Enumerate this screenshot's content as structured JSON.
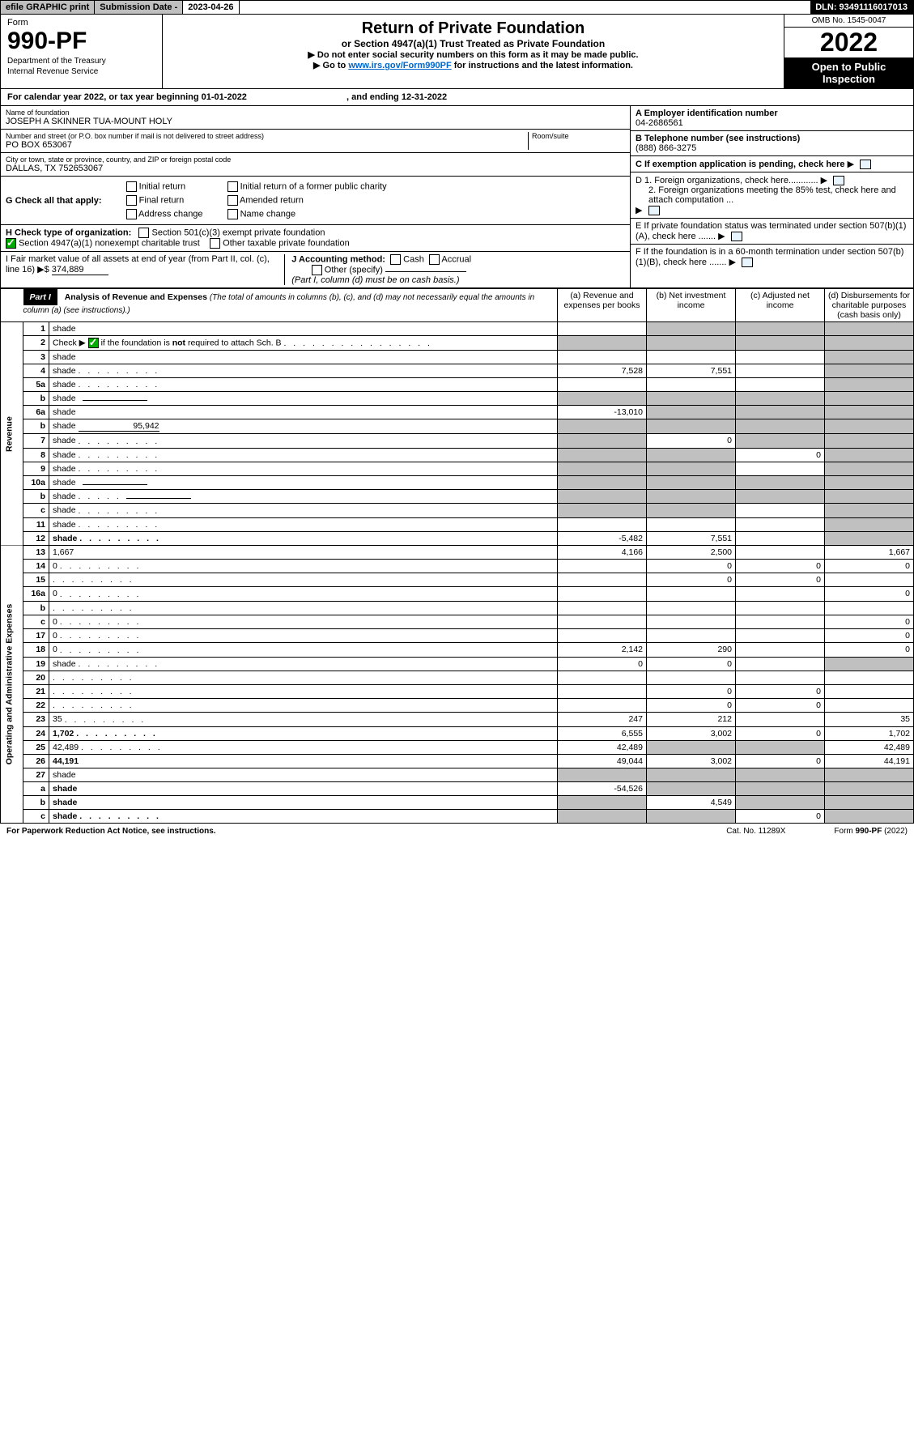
{
  "topbar": {
    "efile": "efile GRAPHIC print",
    "subdate_label": "Submission Date - ",
    "subdate": "2023-04-26",
    "dln": "DLN: 93491116017013"
  },
  "header": {
    "form_word": "Form",
    "form_no": "990-PF",
    "dept": "Department of the Treasury",
    "irs": "Internal Revenue Service",
    "title": "Return of Private Foundation",
    "subtitle": "or Section 4947(a)(1) Trust Treated as Private Foundation",
    "instr1": "▶ Do not enter social security numbers on this form as it may be made public.",
    "instr2a": "▶ Go to ",
    "instr2_link": "www.irs.gov/Form990PF",
    "instr2b": " for instructions and the latest information.",
    "omb": "OMB No. 1545-0047",
    "year": "2022",
    "open_pub": "Open to Public Inspection"
  },
  "calyear": {
    "text_a": "For calendar year 2022, or tax year beginning ",
    "begin": "01-01-2022",
    "text_b": ", and ending ",
    "end": "12-31-2022"
  },
  "entity": {
    "name_label": "Name of foundation",
    "name": "JOSEPH A SKINNER TUA-MOUNT HOLY",
    "addr_label": "Number and street (or P.O. box number if mail is not delivered to street address)",
    "addr": "PO BOX 653067",
    "room_label": "Room/suite",
    "city_label": "City or town, state or province, country, and ZIP or foreign postal code",
    "city": "DALLAS, TX  752653067",
    "ein_label": "A Employer identification number",
    "ein": "04-2686561",
    "tel_label": "B Telephone number (see instructions)",
    "tel": "(888) 866-3275",
    "c_label": "C If exemption application is pending, check here",
    "d1": "D 1. Foreign organizations, check here............",
    "d2": "2. Foreign organizations meeting the 85% test, check here and attach computation ...",
    "e_label": "E  If private foundation status was terminated under section 507(b)(1)(A), check here .......",
    "f_label": "F  If the foundation is in a 60-month termination under section 507(b)(1)(B), check here ......."
  },
  "g": {
    "label": "G Check all that apply:",
    "opts": [
      "Initial return",
      "Final return",
      "Address change",
      "Initial return of a former public charity",
      "Amended return",
      "Name change"
    ]
  },
  "h": {
    "label": "H Check type of organization:",
    "opt1": "Section 501(c)(3) exempt private foundation",
    "opt2": "Section 4947(a)(1) nonexempt charitable trust",
    "opt3": "Other taxable private foundation"
  },
  "i": {
    "label": "I Fair market value of all assets at end of year (from Part II, col. (c), line 16) ▶$ ",
    "val": "374,889"
  },
  "j": {
    "label": "J Accounting method:",
    "opts": [
      "Cash",
      "Accrual"
    ],
    "other": "Other (specify)",
    "note": "(Part I, column (d) must be on cash basis.)"
  },
  "part1": {
    "hdr": "Part I",
    "title": "Analysis of Revenue and Expenses",
    "note": "(The total of amounts in columns (b), (c), and (d) may not necessarily equal the amounts in column (a) (see instructions).)",
    "cols": {
      "a": "(a)   Revenue and expenses per books",
      "b": "(b)  Net investment income",
      "c": "(c)  Adjusted net income",
      "d": "(d)  Disbursements for charitable purposes (cash basis only)"
    }
  },
  "vert": {
    "rev": "Revenue",
    "ops": "Operating and Administrative Expenses"
  },
  "rows": [
    {
      "n": "1",
      "d": "shade",
      "a": "",
      "b": "shade",
      "c": "shade"
    },
    {
      "n": "2",
      "d": "shade",
      "a": "shade",
      "b": "shade",
      "c": "shade",
      "dotrow": true
    },
    {
      "n": "3",
      "d": "shade",
      "a": "",
      "b": "",
      "c": ""
    },
    {
      "n": "4",
      "d": "shade",
      "a": "7,528",
      "b": "7,551",
      "c": "",
      "dots": true
    },
    {
      "n": "5a",
      "d": "shade",
      "a": "",
      "b": "",
      "c": "",
      "dots": true
    },
    {
      "n": "b",
      "d": "shade",
      "a": "shade",
      "b": "shade",
      "c": "shade",
      "inline": true
    },
    {
      "n": "6a",
      "d": "shade",
      "a": "-13,010",
      "b": "shade",
      "c": "shade"
    },
    {
      "n": "b",
      "d": "shade",
      "a": "shade",
      "b": "shade",
      "c": "shade",
      "inline_val": "95,942"
    },
    {
      "n": "7",
      "d": "shade",
      "a": "shade",
      "b": "0",
      "c": "shade",
      "dots": true
    },
    {
      "n": "8",
      "d": "shade",
      "a": "shade",
      "b": "shade",
      "c": "0",
      "dots": true
    },
    {
      "n": "9",
      "d": "shade",
      "a": "shade",
      "b": "shade",
      "c": "",
      "dots": true
    },
    {
      "n": "10a",
      "d": "shade",
      "a": "shade",
      "b": "shade",
      "c": "shade",
      "inline": true
    },
    {
      "n": "b",
      "d": "shade",
      "a": "shade",
      "b": "shade",
      "c": "shade",
      "inline": true,
      "dots": true
    },
    {
      "n": "c",
      "d": "shade",
      "a": "shade",
      "b": "shade",
      "c": "",
      "dots": true
    },
    {
      "n": "11",
      "d": "shade",
      "a": "",
      "b": "",
      "c": "",
      "dots": true
    },
    {
      "n": "12",
      "d": "shade",
      "a": "-5,482",
      "b": "7,551",
      "c": "",
      "bold": true,
      "dots": true
    },
    {
      "n": "13",
      "d": "1,667",
      "a": "4,166",
      "b": "2,500",
      "c": ""
    },
    {
      "n": "14",
      "d": "0",
      "a": "",
      "b": "0",
      "c": "0",
      "dots": true
    },
    {
      "n": "15",
      "d": "",
      "a": "",
      "b": "0",
      "c": "0",
      "dots": true
    },
    {
      "n": "16a",
      "d": "0",
      "a": "",
      "b": "",
      "c": "",
      "dots": true
    },
    {
      "n": "b",
      "d": "",
      "a": "",
      "b": "",
      "c": "",
      "dots": true
    },
    {
      "n": "c",
      "d": "0",
      "a": "",
      "b": "",
      "c": "",
      "dots": true
    },
    {
      "n": "17",
      "d": "0",
      "a": "",
      "b": "",
      "c": "",
      "dots": true
    },
    {
      "n": "18",
      "d": "0",
      "a": "2,142",
      "b": "290",
      "c": "",
      "dots": true
    },
    {
      "n": "19",
      "d": "shade",
      "a": "0",
      "b": "0",
      "c": "",
      "dots": true
    },
    {
      "n": "20",
      "d": "",
      "a": "",
      "b": "",
      "c": "",
      "dots": true
    },
    {
      "n": "21",
      "d": "",
      "a": "",
      "b": "0",
      "c": "0",
      "dots": true
    },
    {
      "n": "22",
      "d": "",
      "a": "",
      "b": "0",
      "c": "0",
      "dots": true
    },
    {
      "n": "23",
      "d": "35",
      "a": "247",
      "b": "212",
      "c": "",
      "dots": true
    },
    {
      "n": "24",
      "d": "1,702",
      "a": "6,555",
      "b": "3,002",
      "c": "0",
      "bold": true,
      "dots": true
    },
    {
      "n": "25",
      "d": "42,489",
      "a": "42,489",
      "b": "shade",
      "c": "shade",
      "dots": true
    },
    {
      "n": "26",
      "d": "44,191",
      "a": "49,044",
      "b": "3,002",
      "c": "0",
      "bold": true
    },
    {
      "n": "27",
      "d": "shade",
      "a": "shade",
      "b": "shade",
      "c": "shade"
    },
    {
      "n": "a",
      "d": "shade",
      "a": "-54,526",
      "b": "shade",
      "c": "shade",
      "bold": true
    },
    {
      "n": "b",
      "d": "shade",
      "a": "shade",
      "b": "4,549",
      "c": "shade",
      "bold": true
    },
    {
      "n": "c",
      "d": "shade",
      "a": "shade",
      "b": "shade",
      "c": "0",
      "bold": true,
      "dots": true
    }
  ],
  "footer": {
    "left": "For Paperwork Reduction Act Notice, see instructions.",
    "mid": "Cat. No. 11289X",
    "right": "Form 990-PF (2022)"
  },
  "colors": {
    "shade": "#c0c0c0",
    "link": "#0066cc",
    "chk": "#00a000"
  }
}
